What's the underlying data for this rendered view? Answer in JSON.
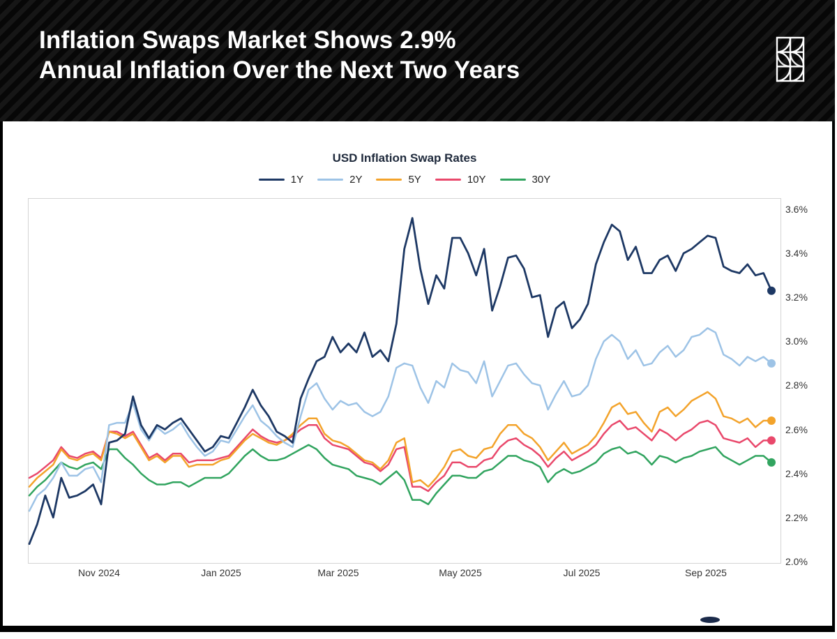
{
  "banner": {
    "title_line1": "Inflation Swaps Market Shows 2.9%",
    "title_line2": "Annual Inflation Over the Next Two Years",
    "text_color": "#ffffff",
    "background_color": "#0b0b0b",
    "logo": "grid-arcs-logo"
  },
  "chart_data": {
    "type": "line",
    "title": "USD Inflation Swap Rates",
    "legend_position": "top-center",
    "grid": "off",
    "y_axis_side": "right",
    "y_tick_labels": [
      "3.6%",
      "3.4%",
      "3.2%",
      "3.0%",
      "2.8%",
      "2.6%",
      "2.4%",
      "2.2%",
      "2.0%"
    ],
    "y_tick_values": [
      3.6,
      3.4,
      3.2,
      3.0,
      2.8,
      2.6,
      2.4,
      2.2,
      2.0
    ],
    "ylim": [
      2.0,
      3.65
    ],
    "x_tick_labels": [
      "Nov 2024",
      "Jan 2025",
      "Mar 2025",
      "May 2025",
      "Jul 2025",
      "Sep 2025"
    ],
    "x_tick_days": [
      35,
      96,
      155,
      216,
      277,
      339
    ],
    "x_domain_days": [
      0,
      372
    ],
    "x_start_date": "2024-09-27",
    "sample_interval_days": 4,
    "units": "percent",
    "series": [
      {
        "name": "1Y",
        "color": "#1d3864",
        "values": [
          2.08,
          2.17,
          2.3,
          2.2,
          2.38,
          2.29,
          2.3,
          2.32,
          2.35,
          2.26,
          2.54,
          2.55,
          2.58,
          2.75,
          2.62,
          2.56,
          2.62,
          2.6,
          2.63,
          2.65,
          2.6,
          2.55,
          2.5,
          2.52,
          2.57,
          2.56,
          2.63,
          2.7,
          2.78,
          2.71,
          2.66,
          2.59,
          2.57,
          2.54,
          2.74,
          2.83,
          2.91,
          2.93,
          3.02,
          2.95,
          2.99,
          2.95,
          3.04,
          2.93,
          2.96,
          2.91,
          3.08,
          3.42,
          3.56,
          3.33,
          3.17,
          3.3,
          3.24,
          3.47,
          3.47,
          3.4,
          3.3,
          3.42,
          3.14,
          3.25,
          3.38,
          3.39,
          3.33,
          3.2,
          3.21,
          3.02,
          3.15,
          3.18,
          3.06,
          3.1,
          3.17,
          3.35,
          3.45,
          3.53,
          3.5,
          3.37,
          3.43,
          3.31,
          3.31,
          3.37,
          3.39,
          3.32,
          3.4,
          3.42,
          3.45,
          3.48,
          3.47,
          3.34,
          3.32,
          3.31,
          3.35,
          3.3,
          3.31,
          3.23
        ]
      },
      {
        "name": "2Y",
        "color": "#9dc3e6",
        "values": [
          2.23,
          2.3,
          2.33,
          2.38,
          2.45,
          2.39,
          2.39,
          2.42,
          2.43,
          2.36,
          2.62,
          2.63,
          2.63,
          2.72,
          2.6,
          2.55,
          2.61,
          2.58,
          2.6,
          2.63,
          2.57,
          2.52,
          2.48,
          2.5,
          2.55,
          2.54,
          2.6,
          2.66,
          2.71,
          2.64,
          2.61,
          2.57,
          2.54,
          2.52,
          2.66,
          2.78,
          2.81,
          2.74,
          2.69,
          2.73,
          2.71,
          2.72,
          2.68,
          2.66,
          2.68,
          2.75,
          2.88,
          2.9,
          2.89,
          2.79,
          2.72,
          2.82,
          2.79,
          2.9,
          2.87,
          2.86,
          2.81,
          2.91,
          2.75,
          2.82,
          2.89,
          2.9,
          2.85,
          2.81,
          2.8,
          2.69,
          2.76,
          2.82,
          2.75,
          2.76,
          2.8,
          2.92,
          3.0,
          3.03,
          3.0,
          2.92,
          2.96,
          2.89,
          2.9,
          2.95,
          2.98,
          2.93,
          2.96,
          3.02,
          3.03,
          3.06,
          3.04,
          2.94,
          2.92,
          2.89,
          2.93,
          2.91,
          2.93,
          2.9
        ]
      },
      {
        "name": "5Y",
        "color": "#f3a32b",
        "values": [
          2.34,
          2.38,
          2.41,
          2.44,
          2.51,
          2.47,
          2.46,
          2.48,
          2.49,
          2.46,
          2.59,
          2.58,
          2.56,
          2.58,
          2.52,
          2.46,
          2.48,
          2.45,
          2.48,
          2.48,
          2.43,
          2.44,
          2.44,
          2.44,
          2.46,
          2.47,
          2.51,
          2.55,
          2.58,
          2.56,
          2.54,
          2.53,
          2.55,
          2.58,
          2.62,
          2.65,
          2.65,
          2.58,
          2.55,
          2.54,
          2.52,
          2.49,
          2.46,
          2.45,
          2.42,
          2.46,
          2.54,
          2.56,
          2.36,
          2.37,
          2.34,
          2.38,
          2.43,
          2.5,
          2.51,
          2.48,
          2.47,
          2.51,
          2.52,
          2.58,
          2.62,
          2.62,
          2.58,
          2.56,
          2.52,
          2.46,
          2.5,
          2.54,
          2.49,
          2.51,
          2.53,
          2.57,
          2.63,
          2.7,
          2.72,
          2.67,
          2.68,
          2.63,
          2.59,
          2.68,
          2.7,
          2.66,
          2.69,
          2.73,
          2.75,
          2.77,
          2.74,
          2.66,
          2.65,
          2.63,
          2.65,
          2.61,
          2.64,
          2.64
        ]
      },
      {
        "name": "10Y",
        "color": "#e9486b",
        "values": [
          2.38,
          2.4,
          2.43,
          2.46,
          2.52,
          2.48,
          2.47,
          2.49,
          2.5,
          2.47,
          2.59,
          2.59,
          2.57,
          2.59,
          2.53,
          2.47,
          2.49,
          2.46,
          2.49,
          2.49,
          2.45,
          2.46,
          2.46,
          2.46,
          2.47,
          2.48,
          2.52,
          2.56,
          2.6,
          2.57,
          2.55,
          2.54,
          2.55,
          2.57,
          2.6,
          2.62,
          2.62,
          2.56,
          2.53,
          2.52,
          2.51,
          2.48,
          2.45,
          2.44,
          2.41,
          2.44,
          2.51,
          2.52,
          2.34,
          2.34,
          2.32,
          2.36,
          2.39,
          2.45,
          2.45,
          2.43,
          2.43,
          2.46,
          2.47,
          2.52,
          2.55,
          2.56,
          2.53,
          2.51,
          2.48,
          2.43,
          2.47,
          2.5,
          2.46,
          2.48,
          2.5,
          2.53,
          2.58,
          2.62,
          2.64,
          2.6,
          2.61,
          2.58,
          2.55,
          2.6,
          2.58,
          2.55,
          2.58,
          2.6,
          2.63,
          2.64,
          2.62,
          2.56,
          2.55,
          2.54,
          2.56,
          2.52,
          2.55,
          2.55
        ]
      },
      {
        "name": "30Y",
        "color": "#31a45f",
        "values": [
          2.3,
          2.34,
          2.37,
          2.41,
          2.45,
          2.43,
          2.42,
          2.44,
          2.45,
          2.42,
          2.51,
          2.51,
          2.47,
          2.44,
          2.4,
          2.37,
          2.35,
          2.35,
          2.36,
          2.36,
          2.34,
          2.36,
          2.38,
          2.38,
          2.38,
          2.4,
          2.44,
          2.48,
          2.51,
          2.48,
          2.46,
          2.46,
          2.47,
          2.49,
          2.51,
          2.53,
          2.51,
          2.47,
          2.44,
          2.43,
          2.42,
          2.39,
          2.38,
          2.37,
          2.35,
          2.38,
          2.41,
          2.37,
          2.28,
          2.28,
          2.26,
          2.31,
          2.35,
          2.39,
          2.39,
          2.38,
          2.38,
          2.41,
          2.42,
          2.45,
          2.48,
          2.48,
          2.46,
          2.45,
          2.43,
          2.36,
          2.4,
          2.42,
          2.4,
          2.41,
          2.43,
          2.45,
          2.49,
          2.51,
          2.52,
          2.49,
          2.5,
          2.48,
          2.44,
          2.48,
          2.47,
          2.45,
          2.47,
          2.48,
          2.5,
          2.51,
          2.52,
          2.48,
          2.46,
          2.44,
          2.46,
          2.48,
          2.48,
          2.45
        ]
      }
    ],
    "end_dot_values": {
      "1Y": 3.23,
      "2Y": 2.9,
      "5Y": 2.64,
      "10Y": 2.55,
      "30Y": 2.45
    }
  },
  "footer": {
    "watermark": "partial-logo-ellipse"
  }
}
